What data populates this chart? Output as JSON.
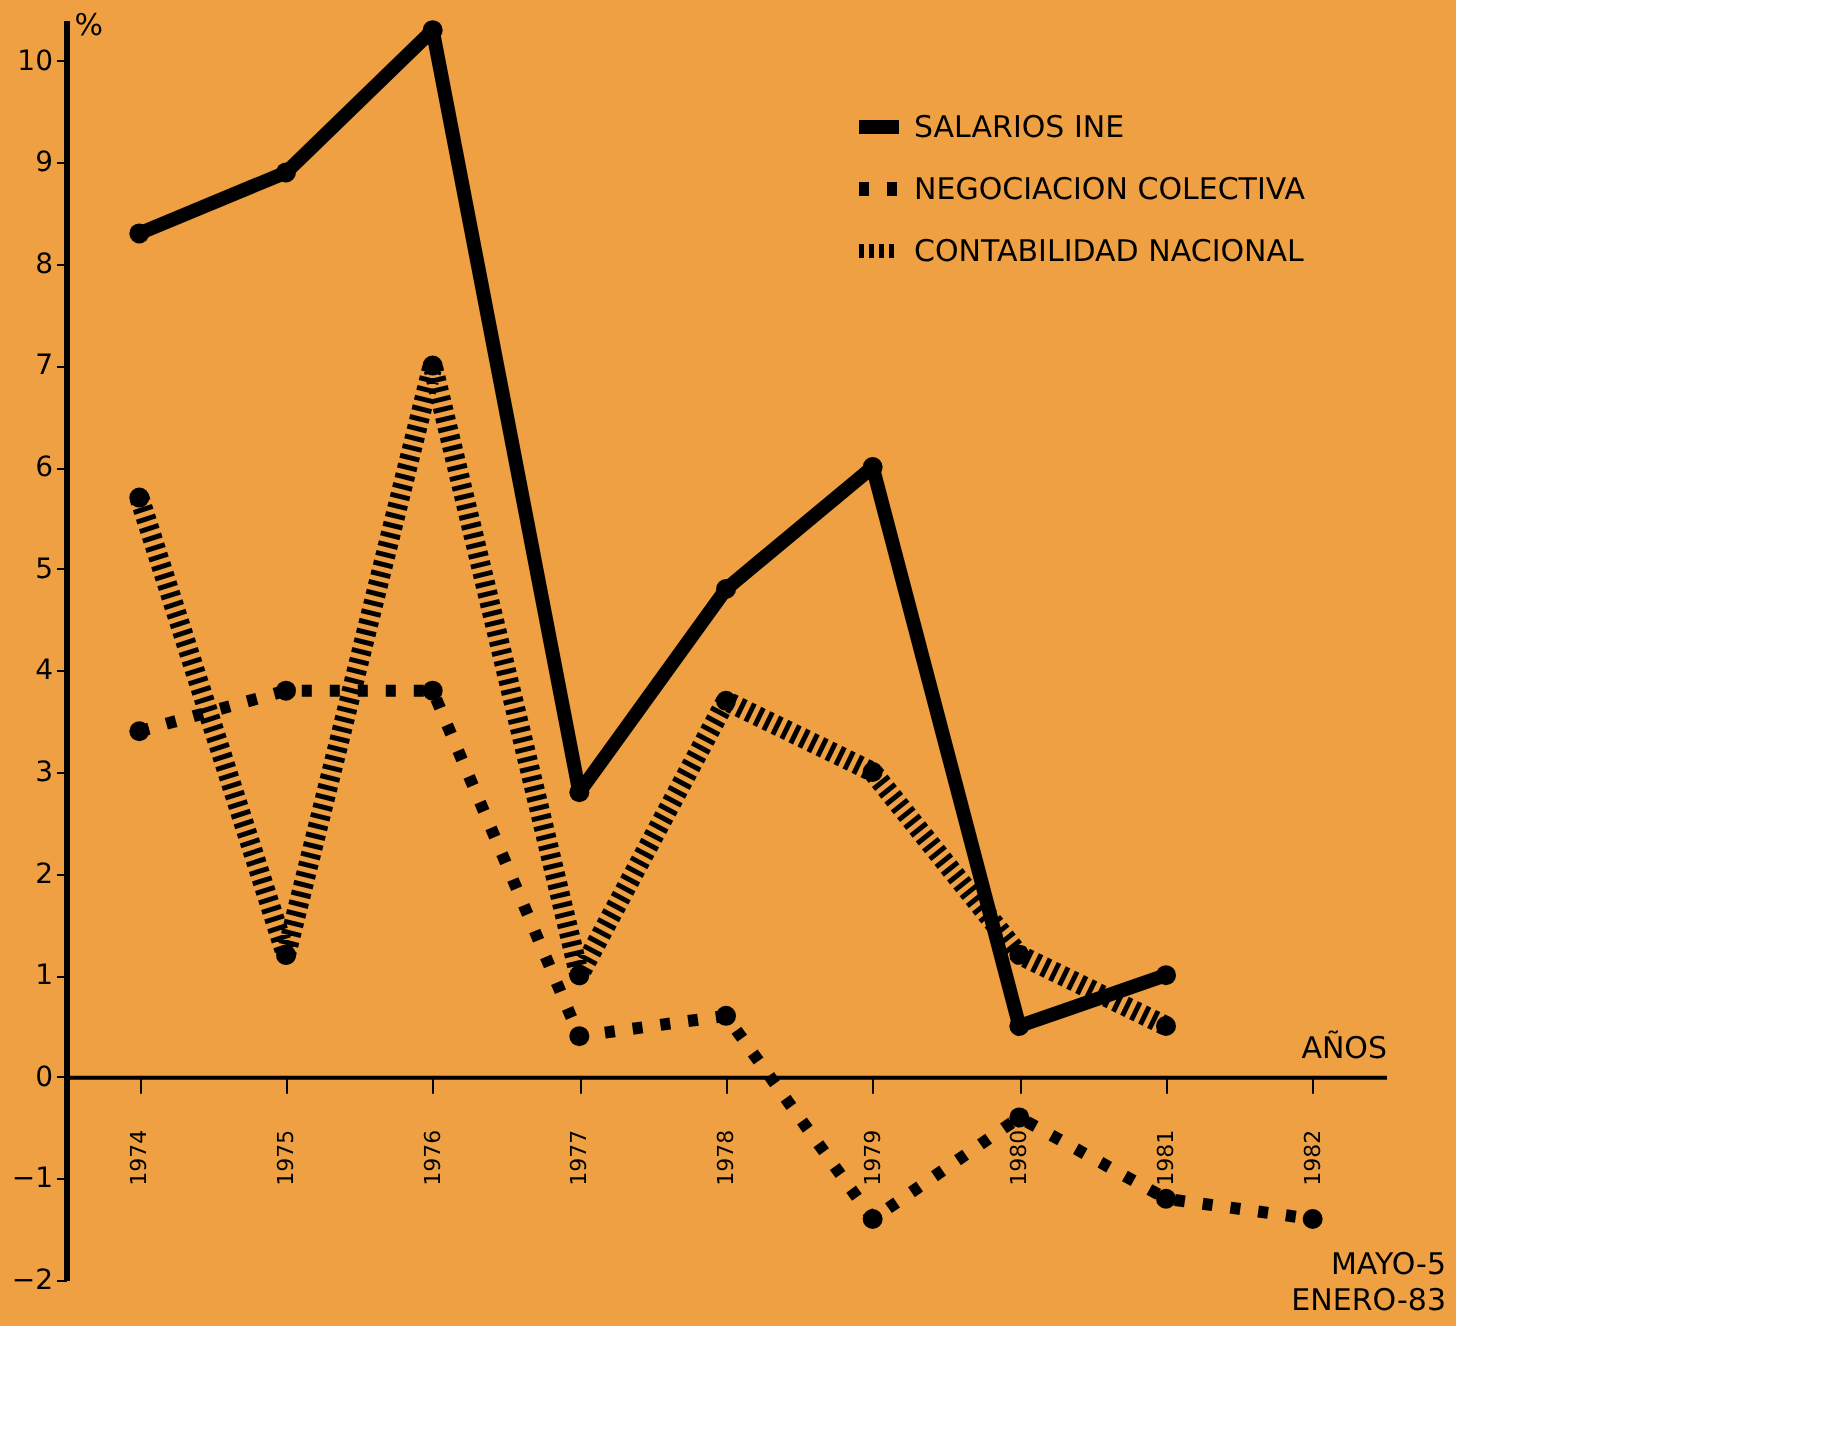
{
  "chart_data": {
    "type": "line",
    "categories": [
      "1974",
      "1975",
      "1976",
      "1977",
      "1978",
      "1979",
      "1980",
      "1981",
      "1982"
    ],
    "series": [
      {
        "name": "SALARIOS INE",
        "color": "#000000",
        "line_style": "solid",
        "values": [
          8.3,
          8.9,
          10.3,
          2.8,
          4.8,
          6.0,
          0.5,
          1.0,
          null
        ]
      },
      {
        "name": "NEGOCIACION COLECTIVA",
        "color": "#000000",
        "line_style": "dotted",
        "values": [
          3.4,
          3.8,
          3.8,
          0.4,
          0.6,
          -1.4,
          -0.4,
          -1.2,
          -1.4
        ]
      },
      {
        "name": "CONTABILIDAD NACIONAL",
        "color": "#000000",
        "line_style": "dashed",
        "values": [
          5.7,
          1.2,
          7.0,
          1.0,
          3.7,
          3.0,
          1.2,
          0.5,
          null
        ]
      }
    ],
    "xlabel": "AÑOS",
    "ylabel": "%",
    "ylim": [
      -2,
      10.4
    ],
    "yticks": [
      -2,
      -1,
      0,
      1,
      2,
      3,
      4,
      5,
      6,
      7,
      8,
      9,
      10
    ],
    "annotations": [
      "MAYO-5",
      "ENERO-83"
    ],
    "marker": "circle",
    "legend": "top right",
    "grid": false
  }
}
